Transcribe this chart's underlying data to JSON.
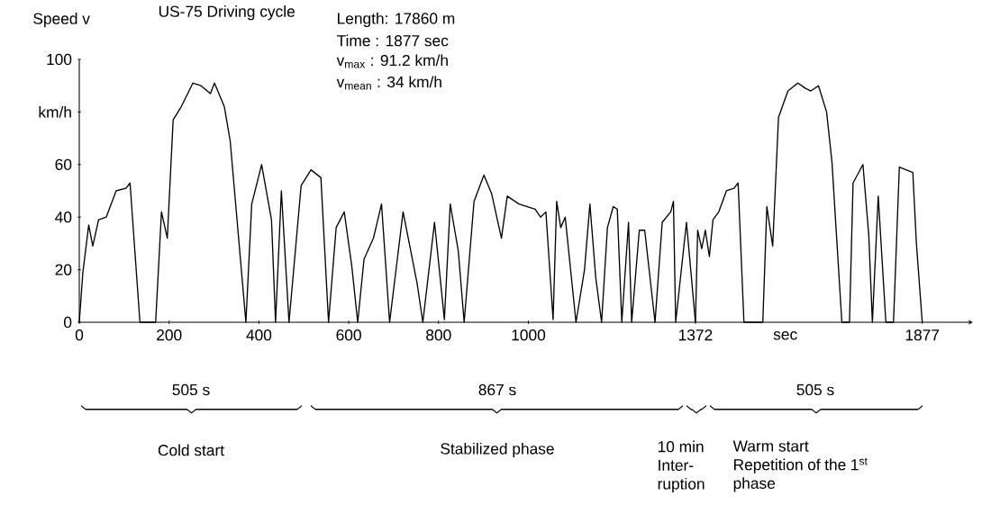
{
  "chart_data": {
    "type": "line",
    "title": "US-75  Driving cycle",
    "ylabel": "Speed v",
    "xlabel": "sec",
    "series": [
      {
        "color": "#000000",
        "x": [
          0,
          8,
          21,
          30,
          43,
          60,
          82,
          104,
          113,
          135,
          170,
          183,
          196,
          209,
          227,
          253,
          271,
          292,
          301,
          323,
          336,
          371,
          384,
          406,
          428,
          437,
          450,
          467,
          494,
          516,
          538,
          555,
          572,
          590,
          607,
          620,
          634,
          655,
          673,
          691,
          721,
          752,
          765,
          791,
          813,
          826,
          844,
          857,
          879,
          901,
          918,
          940,
          953,
          979,
          1015,
          1027,
          1039,
          1055,
          1063,
          1072,
          1082,
          1106,
          1125,
          1137,
          1150,
          1163,
          1176,
          1189,
          1198,
          1208,
          1223,
          1230,
          1247,
          1259,
          1282,
          1298,
          1317,
          1323,
          1328,
          1352,
          1372
        ],
        "values": [
          0,
          19,
          37,
          29,
          39,
          40,
          50,
          51,
          53,
          0,
          0,
          42,
          32,
          77,
          82,
          91,
          90,
          87,
          91,
          82,
          69,
          0,
          45,
          60,
          39,
          0,
          50,
          0,
          52,
          58,
          55,
          0,
          36,
          42,
          21,
          0,
          24,
          32,
          45,
          0,
          42,
          15,
          0,
          38,
          1,
          45,
          27,
          0,
          46,
          56,
          49,
          32,
          48,
          45,
          43,
          40,
          42,
          1,
          46,
          36,
          40,
          0,
          20,
          45,
          17,
          0,
          36,
          44,
          43,
          0,
          38,
          0,
          35,
          35,
          0,
          38,
          42,
          46,
          0,
          38,
          0
        ]
      },
      {
        "color": "#000000",
        "x": [
          1372,
          1377,
          1386,
          1394,
          1403,
          1411,
          1424,
          1441,
          1458,
          1467,
          1480,
          1522,
          1531,
          1544,
          1557,
          1578,
          1600,
          1617,
          1629,
          1646,
          1664,
          1676,
          1698,
          1715,
          1723,
          1745,
          1758,
          1766,
          1779,
          1796,
          1813,
          1826,
          1856,
          1864,
          1877
        ],
        "values": [
          0,
          35,
          28,
          35,
          25,
          39,
          42,
          50,
          51,
          53,
          0,
          0,
          44,
          29,
          78,
          88,
          91,
          89,
          88,
          90,
          80,
          61,
          0,
          0,
          53,
          60,
          33,
          0,
          48,
          0,
          0,
          59,
          57,
          30,
          0
        ]
      }
    ],
    "xlim": [
      0,
      1990
    ],
    "xticks": [
      0,
      200,
      400,
      600,
      800,
      1000,
      1372,
      1877
    ],
    "ylim": [
      0,
      100
    ],
    "yticks": [
      0,
      20,
      40,
      60,
      {
        "value": 80,
        "label": "km/h"
      },
      100
    ],
    "annotations": [
      "Length: 17860 m",
      "Time : 1877 sec",
      "v$_{max}$ : 91.2 km/h",
      "v$_{mean}$ : 34 km/h",
      "505 s",
      "867 s",
      "505 s",
      "Cold start",
      "Stabilized phase",
      "10 min Inter-ruption",
      "Warm start Repetition of the 1$^{st}$ phase"
    ]
  }
}
